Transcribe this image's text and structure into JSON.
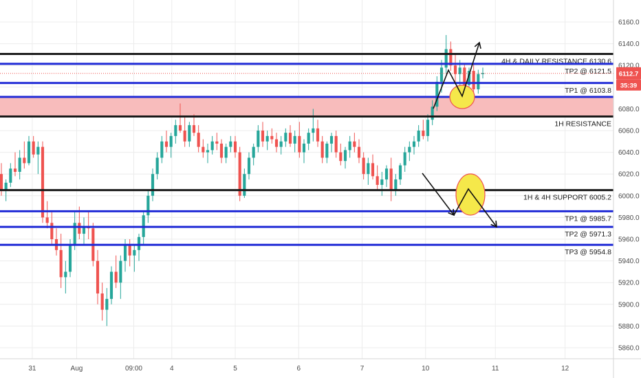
{
  "colors": {
    "up": "#26a69a",
    "down": "#ef5350",
    "resistance_zone": "#f8bcbc",
    "black_line": "#1a1a1a",
    "blue_line": "#1f2ad6",
    "highlight": "#f5e84a",
    "price_tag": "#ef5350",
    "axis_text": "#4a4a4a",
    "grid": "#ececec"
  },
  "chart_data": {
    "type": "candlestick",
    "ylim": [
      5850,
      6170
    ],
    "y_ticks": [
      "6160.0",
      "6140.0",
      "6120.0",
      "6100.0",
      "6080.0",
      "6060.0",
      "6040.0",
      "6020.0",
      "6000.0",
      "5980.0",
      "5960.0",
      "5940.0",
      "5920.0",
      "5900.0",
      "5880.0",
      "5860.0"
    ],
    "x_ticks": [
      {
        "label": "31",
        "x": 0.4
      },
      {
        "label": "Aug",
        "x": 1.1
      },
      {
        "label": "09:00",
        "x": 2.0
      },
      {
        "label": "4",
        "x": 2.6
      },
      {
        "label": "5",
        "x": 3.6
      },
      {
        "label": "6",
        "x": 4.6
      },
      {
        "label": "7",
        "x": 5.6
      },
      {
        "label": "10",
        "x": 6.6
      },
      {
        "label": "11",
        "x": 7.7
      },
      {
        "label": "12",
        "x": 8.8
      }
    ],
    "x_range": [
      0,
      9.4
    ],
    "current_price": "6112.7",
    "countdown": "35:39",
    "resistance_zone": [
      6073,
      6091
    ],
    "levels": [
      {
        "name": "daily-resistance",
        "value": 6130.6,
        "color": "black",
        "label": "4H & DAILY RESISTANCE 6130.6"
      },
      {
        "name": "tp2-upper",
        "value": 6121.5,
        "color": "blue",
        "label": "TP2 @ 6121.5"
      },
      {
        "name": "tp1-upper",
        "value": 6103.8,
        "color": "blue",
        "label": "TP1 @ 6103.8"
      },
      {
        "name": "resistance-1h",
        "value": 6091,
        "color": "blue",
        "label": ""
      },
      {
        "name": "resistance-1h-low",
        "value": 6073,
        "color": "black",
        "label": "1H RESISTANCE"
      },
      {
        "name": "support",
        "value": 6005.2,
        "color": "black",
        "label": "1H & 4H SUPPORT 6005.2"
      },
      {
        "name": "tp1-lower",
        "value": 5985.7,
        "color": "blue",
        "label": "TP1 @ 5985.7"
      },
      {
        "name": "tp2-lower",
        "value": 5971.3,
        "color": "blue",
        "label": "TP2 @ 5971.3"
      },
      {
        "name": "tp3-lower",
        "value": 5954.8,
        "color": "blue",
        "label": "TP3 @ 5954.8"
      }
    ],
    "candles": [
      [
        6020,
        6030,
        6000,
        6005
      ],
      [
        6005,
        6015,
        5995,
        6012
      ],
      [
        6012,
        6030,
        6008,
        6025
      ],
      [
        6025,
        6040,
        6018,
        6022
      ],
      [
        6022,
        6042,
        6015,
        6035
      ],
      [
        6035,
        6050,
        6025,
        6030
      ],
      [
        6030,
        6055,
        6028,
        6050
      ],
      [
        6050,
        6055,
        6035,
        6038
      ],
      [
        6038,
        6050,
        6020,
        6045
      ],
      [
        6045,
        6050,
        5975,
        5980
      ],
      [
        5980,
        5995,
        5970,
        5975
      ],
      [
        5975,
        5985,
        5955,
        5960
      ],
      [
        5960,
        5970,
        5945,
        5950
      ],
      [
        5950,
        5965,
        5915,
        5925
      ],
      [
        5925,
        5940,
        5910,
        5930
      ],
      [
        5930,
        5960,
        5925,
        5955
      ],
      [
        5955,
        5985,
        5950,
        5975
      ],
      [
        5975,
        5990,
        5960,
        5965
      ],
      [
        5965,
        5980,
        5955,
        5972
      ],
      [
        5972,
        5985,
        5960,
        5970
      ],
      [
        5970,
        5975,
        5935,
        5940
      ],
      [
        5940,
        5950,
        5900,
        5910
      ],
      [
        5910,
        5920,
        5885,
        5895
      ],
      [
        5895,
        5915,
        5880,
        5905
      ],
      [
        5905,
        5935,
        5900,
        5930
      ],
      [
        5930,
        5945,
        5915,
        5920
      ],
      [
        5920,
        5945,
        5905,
        5940
      ],
      [
        5940,
        5960,
        5930,
        5955
      ],
      [
        5955,
        5960,
        5935,
        5945
      ],
      [
        5945,
        5955,
        5930,
        5950
      ],
      [
        5950,
        5965,
        5940,
        5962
      ],
      [
        5962,
        5985,
        5955,
        5982
      ],
      [
        5982,
        6005,
        5975,
        6000
      ],
      [
        6000,
        6025,
        5995,
        6020
      ],
      [
        6020,
        6040,
        6015,
        6035
      ],
      [
        6035,
        6055,
        6030,
        6050
      ],
      [
        6050,
        6060,
        6040,
        6045
      ],
      [
        6045,
        6058,
        6035,
        6055
      ],
      [
        6055,
        6070,
        6048,
        6065
      ],
      [
        6065,
        6085,
        6058,
        6060
      ],
      [
        6060,
        6072,
        6045,
        6050
      ],
      [
        6050,
        6068,
        6045,
        6065
      ],
      [
        6065,
        6075,
        6055,
        6058
      ],
      [
        6058,
        6065,
        6040,
        6045
      ],
      [
        6045,
        6052,
        6035,
        6040
      ],
      [
        6040,
        6048,
        6030,
        6042
      ],
      [
        6042,
        6055,
        6038,
        6050
      ],
      [
        6050,
        6058,
        6042,
        6048
      ],
      [
        6048,
        6052,
        6030,
        6035
      ],
      [
        6035,
        6048,
        6030,
        6045
      ],
      [
        6045,
        6055,
        6040,
        6050
      ],
      [
        6050,
        6055,
        6035,
        6040
      ],
      [
        6040,
        6045,
        5995,
        6000
      ],
      [
        6000,
        6025,
        5998,
        6020
      ],
      [
        6020,
        6040,
        6015,
        6035
      ],
      [
        6035,
        6048,
        6028,
        6045
      ],
      [
        6045,
        6065,
        6040,
        6060
      ],
      [
        6060,
        6068,
        6045,
        6050
      ],
      [
        6050,
        6060,
        6042,
        6055
      ],
      [
        6055,
        6062,
        6048,
        6052
      ],
      [
        6052,
        6058,
        6040,
        6045
      ],
      [
        6045,
        6055,
        6038,
        6050
      ],
      [
        6050,
        6062,
        6045,
        6058
      ],
      [
        6058,
        6065,
        6045,
        6048
      ],
      [
        6048,
        6060,
        6040,
        6055
      ],
      [
        6055,
        6068,
        6035,
        6040
      ],
      [
        6040,
        6052,
        6030,
        6048
      ],
      [
        6048,
        6062,
        6042,
        6058
      ],
      [
        6058,
        6080,
        6050,
        6062
      ],
      [
        6062,
        6070,
        6045,
        6050
      ],
      [
        6050,
        6055,
        6030,
        6035
      ],
      [
        6035,
        6050,
        6030,
        6048
      ],
      [
        6048,
        6058,
        6040,
        6055
      ],
      [
        6055,
        6060,
        6035,
        6040
      ],
      [
        6040,
        6048,
        6028,
        6032
      ],
      [
        6032,
        6045,
        6025,
        6042
      ],
      [
        6042,
        6055,
        6035,
        6050
      ],
      [
        6050,
        6058,
        6040,
        6045
      ],
      [
        6045,
        6052,
        6030,
        6035
      ],
      [
        6035,
        6040,
        6015,
        6020
      ],
      [
        6020,
        6035,
        6010,
        6030
      ],
      [
        6030,
        6038,
        6015,
        6018
      ],
      [
        6018,
        6028,
        6005,
        6010
      ],
      [
        6010,
        6022,
        6000,
        6015
      ],
      [
        6015,
        6028,
        6008,
        6025
      ],
      [
        6025,
        6035,
        5995,
        6005
      ],
      [
        6005,
        6020,
        6000,
        6015
      ],
      [
        6015,
        6030,
        6010,
        6028
      ],
      [
        6028,
        6045,
        6022,
        6040
      ],
      [
        6040,
        6050,
        6032,
        6045
      ],
      [
        6045,
        6055,
        6038,
        6050
      ],
      [
        6050,
        6065,
        6045,
        6060
      ],
      [
        6060,
        6070,
        6052,
        6055
      ],
      [
        6055,
        6075,
        6050,
        6070
      ],
      [
        6070,
        6088,
        6065,
        6082
      ],
      [
        6082,
        6110,
        6078,
        6105
      ],
      [
        6105,
        6125,
        6095,
        6118
      ],
      [
        6118,
        6148,
        6112,
        6135
      ],
      [
        6135,
        6142,
        6115,
        6120
      ],
      [
        6120,
        6130,
        6105,
        6112
      ],
      [
        6112,
        6125,
        6100,
        6118
      ],
      [
        6118,
        6122,
        6095,
        6102
      ],
      [
        6102,
        6118,
        6098,
        6115
      ],
      [
        6115,
        6122,
        6092,
        6098
      ],
      [
        6098,
        6116,
        6094,
        6112
      ],
      [
        6112,
        6118,
        6108,
        6113
      ]
    ]
  }
}
